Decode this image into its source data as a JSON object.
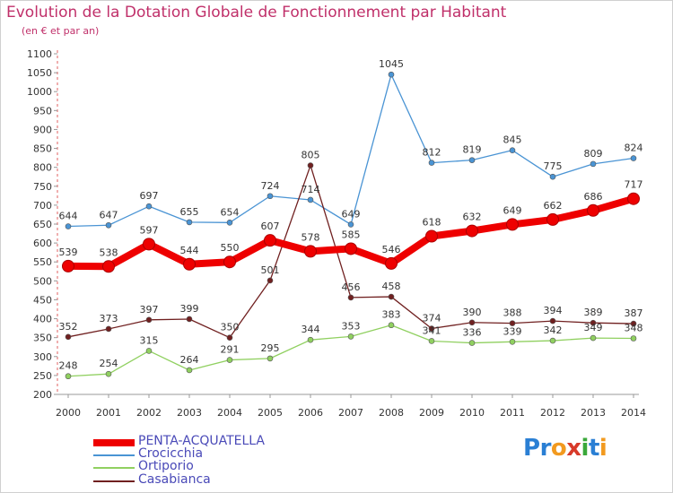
{
  "header": {
    "title": "Evolution de la Dotation Globale de Fonctionnement par Habitant",
    "subtitle": "(en € et par an)"
  },
  "logo": {
    "text": "Proxiti",
    "letters": [
      "P",
      "r",
      "o",
      "x",
      "i",
      "t",
      "i"
    ],
    "colors": [
      "#2a7fd4",
      "#2a7fd4",
      "#f29a1f",
      "#d83a2a",
      "#3aa83a",
      "#2a7fd4",
      "#f29a1f"
    ]
  },
  "chart_data": {
    "type": "line",
    "title": "Evolution de la Dotation Globale de Fonctionnement par Habitant",
    "subtitle": "(en € et par an)",
    "x": [
      "2000",
      "2001",
      "2002",
      "2003",
      "2004",
      "2005",
      "2006",
      "2007",
      "2008",
      "2009",
      "2010",
      "2011",
      "2012",
      "2013",
      "2014"
    ],
    "ylim": [
      200,
      1100
    ],
    "yticks": [
      200,
      250,
      300,
      350,
      400,
      450,
      500,
      550,
      600,
      650,
      700,
      750,
      800,
      850,
      900,
      950,
      1000,
      1050,
      1100
    ],
    "grid": false,
    "legend_position": "bottom-left",
    "series": [
      {
        "name": "PENTA-ACQUATELLA",
        "color": "#ee0000",
        "values": [
          539,
          538,
          597,
          544,
          550,
          607,
          578,
          585,
          546,
          618,
          632,
          649,
          662,
          686,
          717
        ]
      },
      {
        "name": "Crocicchia",
        "color": "#4a94d4",
        "values": [
          644,
          647,
          697,
          655,
          654,
          724,
          714,
          649,
          1045,
          812,
          819,
          845,
          775,
          809,
          824
        ]
      },
      {
        "name": "Ortiporio",
        "color": "#90d060",
        "values": [
          248,
          254,
          315,
          264,
          291,
          295,
          344,
          353,
          383,
          341,
          336,
          339,
          342,
          349,
          348
        ]
      },
      {
        "name": "Casabianca",
        "color": "#702020",
        "values": [
          352,
          373,
          397,
          399,
          350,
          501,
          805,
          456,
          458,
          374,
          390,
          388,
          394,
          389,
          387
        ]
      }
    ]
  }
}
